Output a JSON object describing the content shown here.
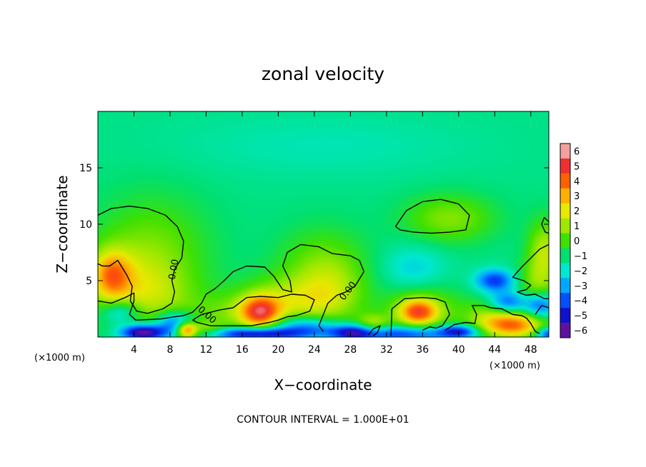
{
  "chart_data": {
    "type": "heatmap",
    "title": "zonal velocity",
    "xlabel": "X−coordinate",
    "ylabel": "Z−coordinate",
    "x_unit_left": "(×1000 m)",
    "x_unit_right": "(×1000 m)",
    "footer": "CONTOUR INTERVAL = 1.000E+01",
    "xlim": [
      0,
      50
    ],
    "ylim": [
      0,
      20
    ],
    "x_ticks": [
      4,
      8,
      12,
      16,
      20,
      24,
      28,
      32,
      36,
      40,
      44,
      48
    ],
    "y_ticks": [
      5,
      10,
      15
    ],
    "colorbar": {
      "levels": [
        6,
        5,
        4,
        3,
        2,
        1,
        0,
        -1,
        -2,
        -3,
        -4,
        -5,
        -6
      ],
      "labels": [
        "6",
        "5",
        "4",
        "3",
        "2",
        "1",
        "0",
        "−1",
        "−2",
        "−3",
        "−4",
        "−5",
        "−6"
      ],
      "colors": [
        "#f4a0a0",
        "#f03030",
        "#ff6000",
        "#ffb000",
        "#e8e800",
        "#a0e800",
        "#40e000",
        "#00e070",
        "#00e8d0",
        "#00a8ff",
        "#0050ff",
        "#1010d0",
        "#6010a0"
      ]
    },
    "contour_labels": [
      "0.00",
      "0.00",
      "0.00"
    ],
    "background_value": -1.2,
    "features": [
      {
        "x": 1.5,
        "z": 5.5,
        "value": 3.0,
        "sx": 1.5,
        "sz": 1.5
      },
      {
        "x": 2.5,
        "z": 4.2,
        "value": 1.2,
        "sx": 3.0,
        "sz": 2.5
      },
      {
        "x": 6.0,
        "z": 7.5,
        "value": 1.4,
        "sx": 4.5,
        "sz": 3.5
      },
      {
        "x": 7.0,
        "z": 3.5,
        "value": 1.0,
        "sx": 3.0,
        "sz": 2.0
      },
      {
        "x": 18.0,
        "z": 2.2,
        "value": 4.2,
        "sx": 1.5,
        "sz": 1.0
      },
      {
        "x": 21.0,
        "z": 3.2,
        "value": 1.8,
        "sx": 4.0,
        "sz": 1.5
      },
      {
        "x": 15.0,
        "z": 2.0,
        "value": 1.0,
        "sx": 3.5,
        "sz": 1.2
      },
      {
        "x": 25.0,
        "z": 6.0,
        "value": 1.5,
        "sx": 3.5,
        "sz": 2.5
      },
      {
        "x": 26.0,
        "z": 3.5,
        "value": 0.8,
        "sx": 2.5,
        "sz": 2.0
      },
      {
        "x": 39.0,
        "z": 10.5,
        "value": 1.6,
        "sx": 3.5,
        "sz": 1.5
      },
      {
        "x": 35.5,
        "z": 2.2,
        "value": 4.0,
        "sx": 1.5,
        "sz": 0.8
      },
      {
        "x": 36.0,
        "z": 2.6,
        "value": 1.5,
        "sx": 3.0,
        "sz": 1.5
      },
      {
        "x": 30.5,
        "z": 1.0,
        "value": 2.2,
        "sx": 1.3,
        "sz": 0.7
      },
      {
        "x": 46.0,
        "z": 1.0,
        "value": 4.2,
        "sx": 2.5,
        "sz": 0.8
      },
      {
        "x": 44.0,
        "z": 2.0,
        "value": 1.5,
        "sx": 2.5,
        "sz": 1.0
      },
      {
        "x": 49.5,
        "z": 7.5,
        "value": 2.2,
        "sx": 1.3,
        "sz": 2.0
      },
      {
        "x": 48.5,
        "z": 4.5,
        "value": 1.2,
        "sx": 1.5,
        "sz": 1.5
      },
      {
        "x": 9.8,
        "z": 0.6,
        "value": 4.5,
        "sx": 0.8,
        "sz": 0.5
      },
      {
        "x": 12.0,
        "z": 0.6,
        "value": 1.5,
        "sx": 1.5,
        "sz": 0.5
      },
      {
        "x": 5.0,
        "z": 0.4,
        "value": -5.8,
        "sx": 1.8,
        "sz": 0.5
      },
      {
        "x": 2.5,
        "z": 2.2,
        "value": -2.8,
        "sx": 1.5,
        "sz": 0.8
      },
      {
        "x": 8.5,
        "z": 1.3,
        "value": -3.5,
        "sx": 1.5,
        "sz": 0.7
      },
      {
        "x": 17.5,
        "z": 0.3,
        "value": -5.0,
        "sx": 4.0,
        "sz": 0.4
      },
      {
        "x": 23.0,
        "z": 1.0,
        "value": -3.0,
        "sx": 2.5,
        "sz": 0.6
      },
      {
        "x": 28.5,
        "z": 0.4,
        "value": -4.2,
        "sx": 2.0,
        "sz": 0.5
      },
      {
        "x": 34.0,
        "z": 0.3,
        "value": -3.5,
        "sx": 4.0,
        "sz": 0.5
      },
      {
        "x": 44.0,
        "z": 5.0,
        "value": -3.5,
        "sx": 1.5,
        "sz": 0.7
      },
      {
        "x": 45.5,
        "z": 3.0,
        "value": -3.5,
        "sx": 1.5,
        "sz": 0.7
      },
      {
        "x": 49.0,
        "z": 2.8,
        "value": -3.5,
        "sx": 1.2,
        "sz": 0.8
      },
      {
        "x": 40.0,
        "z": 0.5,
        "value": -3.8,
        "sx": 1.5,
        "sz": 0.4
      },
      {
        "x": 50.0,
        "z": 0.3,
        "value": -4.0,
        "sx": 1.0,
        "sz": 0.4
      },
      {
        "x": 25.0,
        "z": 17.0,
        "value": -0.8,
        "sx": 12.0,
        "sz": 2.0
      },
      {
        "x": 35.0,
        "z": 6.0,
        "value": -1.5,
        "sx": 2.5,
        "sz": 1.5
      }
    ],
    "zero_contours": [
      [
        [
          0,
          10.8
        ],
        [
          1.5,
          11.4
        ],
        [
          3.5,
          11.6
        ],
        [
          5.5,
          11.4
        ],
        [
          7.5,
          10.8
        ],
        [
          8.8,
          9.8
        ],
        [
          9.5,
          8.5
        ],
        [
          9.3,
          7
        ],
        [
          8.5,
          6
        ],
        [
          8.2,
          5
        ],
        [
          8.5,
          4
        ],
        [
          8.2,
          3
        ],
        [
          7.2,
          2.5
        ],
        [
          5.5,
          2.1
        ],
        [
          4.3,
          2.3
        ],
        [
          3.6,
          3.2
        ],
        [
          3.8,
          4.5
        ],
        [
          3.2,
          5.5
        ],
        [
          2.2,
          6.8
        ],
        [
          1.3,
          6.3
        ],
        [
          0.5,
          6.3
        ],
        [
          0,
          6.5
        ]
      ],
      [
        [
          0,
          3.2
        ],
        [
          1.5,
          3.0
        ],
        [
          3.0,
          3.5
        ],
        [
          4.0,
          3.9
        ],
        [
          4.0,
          3.2
        ],
        [
          3.5,
          2.0
        ],
        [
          4.2,
          1.5
        ],
        [
          7.0,
          1.6
        ],
        [
          8.5,
          1.8
        ],
        [
          9.5,
          1.9
        ],
        [
          10.5,
          2.2
        ],
        [
          11.5,
          3.0
        ],
        [
          12.0,
          3.8
        ],
        [
          13.0,
          4.3
        ],
        [
          14.0,
          5.0
        ],
        [
          15.0,
          5.8
        ],
        [
          16.5,
          6.3
        ],
        [
          18.5,
          6.2
        ],
        [
          19.5,
          5.4
        ],
        [
          20.5,
          4.2
        ],
        [
          21.5,
          4.0
        ],
        [
          21.3,
          5.0
        ],
        [
          20.5,
          6.3
        ],
        [
          21.0,
          7.5
        ],
        [
          22.5,
          8.2
        ],
        [
          24.5,
          8.0
        ],
        [
          26.0,
          7.4
        ],
        [
          28.0,
          7.2
        ],
        [
          29.0,
          6.8
        ],
        [
          29.5,
          5.8
        ],
        [
          28.5,
          4.5
        ],
        [
          27.5,
          4.0
        ],
        [
          26.5,
          3.7
        ],
        [
          25.5,
          3.0
        ],
        [
          25.0,
          2.0
        ],
        [
          24.5,
          1.0
        ],
        [
          25.0,
          0.5
        ]
      ],
      [
        [
          10.5,
          1.5
        ],
        [
          11.5,
          2.0
        ],
        [
          13.5,
          2.4
        ],
        [
          15.0,
          2.6
        ],
        [
          16.5,
          3.5
        ],
        [
          18.0,
          3.6
        ],
        [
          20.0,
          3.5
        ],
        [
          21.5,
          3.8
        ],
        [
          23.0,
          3.7
        ],
        [
          24.0,
          3.3
        ],
        [
          23.5,
          2.3
        ],
        [
          22.0,
          1.9
        ],
        [
          21.0,
          1.8
        ],
        [
          20.0,
          1.5
        ],
        [
          19.0,
          1.3
        ],
        [
          17.0,
          1.0
        ],
        [
          15.0,
          1.0
        ],
        [
          12.5,
          1.0
        ],
        [
          11.0,
          1.3
        ],
        [
          10.5,
          1.5
        ]
      ],
      [
        [
          32.5,
          0.1
        ],
        [
          32.6,
          2.5
        ],
        [
          34.0,
          3.4
        ],
        [
          36.0,
          3.5
        ],
        [
          37.5,
          3.4
        ],
        [
          38.5,
          3.1
        ],
        [
          39.0,
          2.0
        ],
        [
          38.2,
          1.0
        ],
        [
          37.5,
          0.8
        ],
        [
          36.8,
          0.9
        ],
        [
          36.0,
          0.6
        ]
      ],
      [
        [
          30.0,
          0.2
        ],
        [
          30.5,
          0.7
        ],
        [
          31.3,
          1.0
        ],
        [
          31.0,
          0.4
        ],
        [
          30.5,
          0.1
        ]
      ],
      [
        [
          38.5,
          0.6
        ],
        [
          39.5,
          1.1
        ],
        [
          40.8,
          1.3
        ],
        [
          41.8,
          1.2
        ],
        [
          42.0,
          2.0
        ],
        [
          41.5,
          2.8
        ],
        [
          42.8,
          2.8
        ],
        [
          43.5,
          2.6
        ],
        [
          44.8,
          2.5
        ],
        [
          46.0,
          2.0
        ],
        [
          47.0,
          1.9
        ],
        [
          47.5,
          1.7
        ],
        [
          48.0,
          1.2
        ],
        [
          48.5,
          0.5
        ],
        [
          49.0,
          0.3
        ]
      ],
      [
        [
          48.5,
          2.0
        ],
        [
          49.2,
          2.8
        ],
        [
          50,
          2.6
        ]
      ],
      [
        [
          50,
          8.2
        ],
        [
          49.0,
          7.8
        ],
        [
          48.0,
          7.0
        ],
        [
          47.0,
          6.2
        ],
        [
          46.0,
          5.3
        ],
        [
          47.2,
          5.0
        ],
        [
          48.0,
          4.6
        ],
        [
          47.5,
          4.2
        ],
        [
          46.5,
          4.0
        ],
        [
          47.5,
          3.7
        ],
        [
          48.5,
          3.8
        ],
        [
          49.5,
          3.4
        ],
        [
          50,
          3.4
        ]
      ],
      [
        [
          50,
          10.2
        ],
        [
          49.5,
          10.6
        ],
        [
          49.2,
          10.0
        ],
        [
          49.6,
          9.3
        ],
        [
          50,
          9.2
        ]
      ],
      [
        [
          33.0,
          9.8
        ],
        [
          34.2,
          11.2
        ],
        [
          36.0,
          12.0
        ],
        [
          38.0,
          12.2
        ],
        [
          40.0,
          11.8
        ],
        [
          41.2,
          10.8
        ],
        [
          40.8,
          9.5
        ],
        [
          39.0,
          9.3
        ],
        [
          37.0,
          9.2
        ],
        [
          35.0,
          9.3
        ],
        [
          33.5,
          9.5
        ],
        [
          33.0,
          9.8
        ]
      ]
    ]
  }
}
